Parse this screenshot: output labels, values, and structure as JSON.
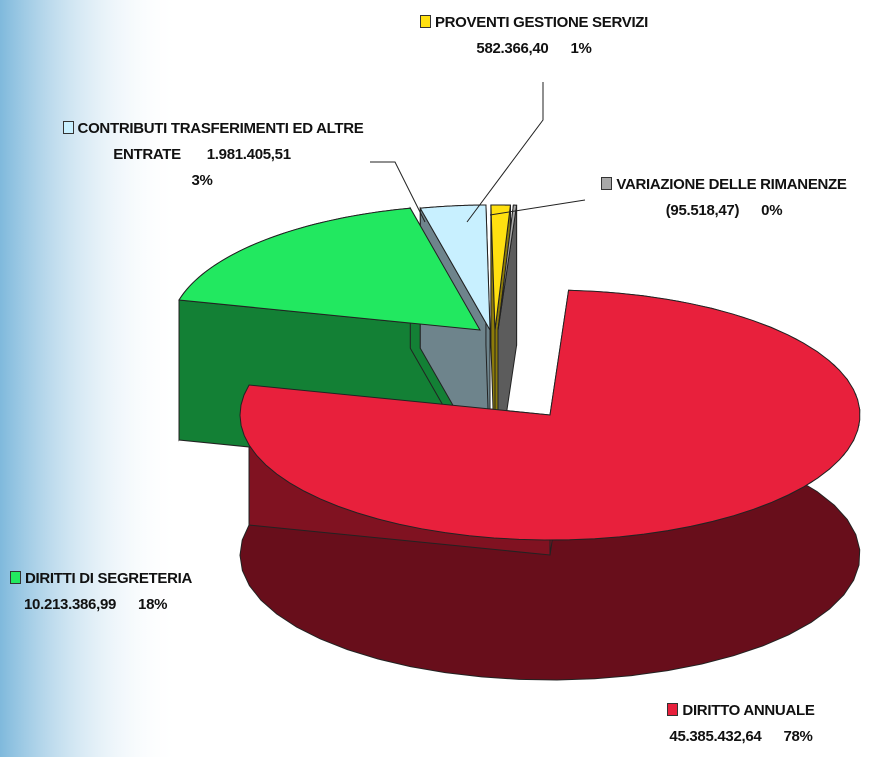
{
  "chart_data": {
    "type": "pie3d",
    "categories": [
      "DIRITTO ANNUALE",
      "DIRITTI DI SEGRETERIA",
      "CONTRIBUTI TRASFERIMENTI ED ALTRE ENTRATE",
      "PROVENTI GESTIONE SERVIZI",
      "VARIAZIONE DELLE RIMANENZE"
    ],
    "values": [
      45385432.64,
      10213386.99,
      1981405.51,
      582366.4,
      -95518.47
    ],
    "value_labels": [
      "45.385.432,64",
      "10.213.386,99",
      "1.981.405,51",
      "582.366,40",
      "(95.518,47)"
    ],
    "percentages": [
      78,
      18,
      3,
      1,
      0
    ],
    "percent_labels": [
      "78%",
      "18%",
      "3%",
      "1%",
      "0%"
    ],
    "colors": [
      "#e8203c",
      "#22e860",
      "#c8f0ff",
      "#ffe010",
      "#a8a8a8"
    ]
  }
}
